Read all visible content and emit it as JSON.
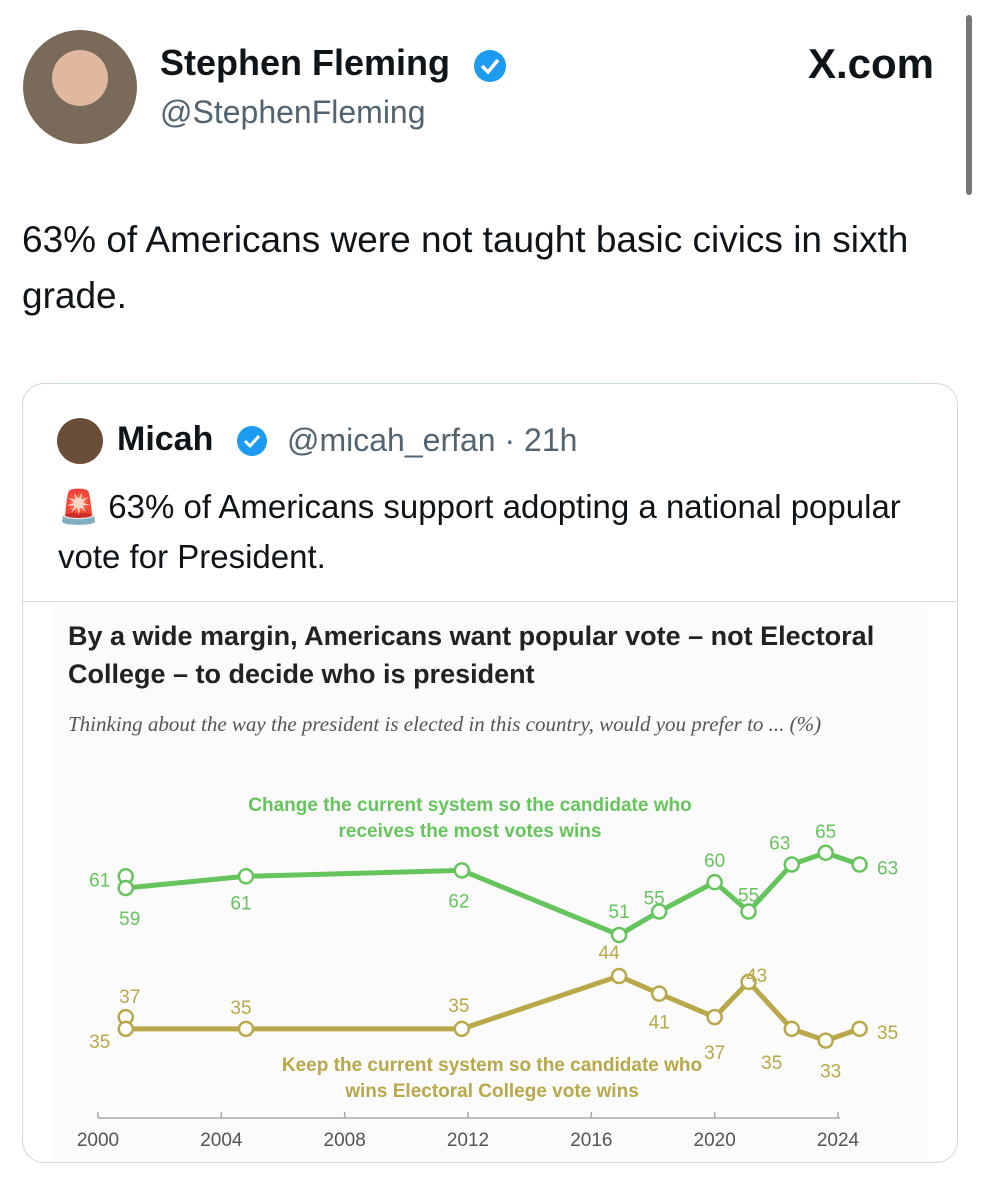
{
  "header": {
    "name": "Stephen Fleming",
    "handle": "@StephenFleming",
    "site": "X.com"
  },
  "tweet": {
    "text": "63% of Americans were not taught basic civics in sixth grade."
  },
  "quote": {
    "name": "Micah",
    "handle": "@micah_erfan",
    "time": "· 21h",
    "text": "🚨 63% of Americans support adopting a national popular vote for President."
  },
  "chart_data": {
    "type": "line",
    "title": "By a wide margin, Americans want popular vote – not Electoral College – to decide who is president",
    "subtitle": "Thinking about the way the president is elected in this country, would you prefer to ... (%)",
    "x": [
      2000.9,
      2000.9,
      2004.8,
      2011.8,
      2016.9,
      2018.2,
      2020.0,
      2021.1,
      2022.5,
      2023.6,
      2024.7
    ],
    "series": [
      {
        "name": "Change the current system so the candidate who receives the most votes wins",
        "color": "#66c45c",
        "values": [
          61,
          59,
          61,
          62,
          51,
          55,
          60,
          55,
          63,
          65,
          63
        ]
      },
      {
        "name": "Keep the current system so the candidate who wins Electoral College vote wins",
        "color": "#b8a84a",
        "values": [
          37,
          35,
          35,
          35,
          44,
          41,
          37,
          43,
          35,
          33,
          35
        ]
      }
    ],
    "xlim": [
      2000,
      2024
    ],
    "xticks": [
      2000,
      2004,
      2008,
      2012,
      2016,
      2020,
      2024
    ],
    "ylim": [
      21,
      74
    ]
  }
}
